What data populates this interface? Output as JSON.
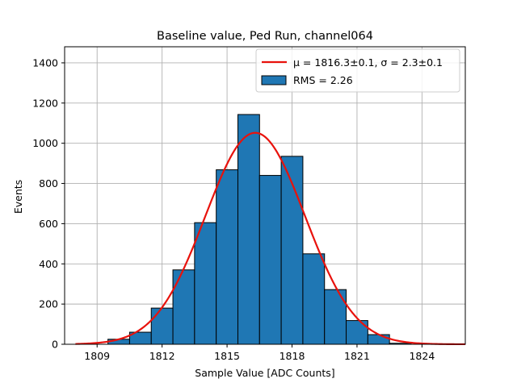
{
  "chart_data": {
    "type": "bar",
    "title": "Baseline value, Ped Run, channel064",
    "xlabel": "Sample Value [ADC Counts]",
    "ylabel": "Events",
    "xlim": [
      1807.5,
      1826.0
    ],
    "ylim": [
      0,
      1480
    ],
    "xticks": [
      1809,
      1812,
      1815,
      1818,
      1821,
      1824
    ],
    "yticks": [
      0,
      200,
      400,
      600,
      800,
      1000,
      1200,
      1400
    ],
    "grid": true,
    "bin_width": 1,
    "histogram": {
      "name": "RMS = 2.26",
      "bin_starts": [
        1809.5,
        1810.5,
        1811.5,
        1812.5,
        1813.5,
        1814.5,
        1815.5,
        1816.5,
        1817.5,
        1818.5,
        1819.5,
        1820.5,
        1821.5,
        1822.5
      ],
      "values": [
        25,
        60,
        180,
        370,
        605,
        868,
        1143,
        840,
        935,
        450,
        272,
        118,
        48,
        5
      ]
    },
    "fit": {
      "name": "μ = 1816.3±0.1, σ = 2.3±0.1",
      "mu": 1816.3,
      "sigma": 2.3,
      "amplitude": 1052,
      "x_range": [
        1808.0,
        1826.0
      ]
    },
    "legend_position": "top-right",
    "colors": {
      "bar_fill": "#1f77b4",
      "bar_edge": "#000000",
      "fit_line": "#e8120c",
      "grid": "#b0b0b0"
    }
  }
}
